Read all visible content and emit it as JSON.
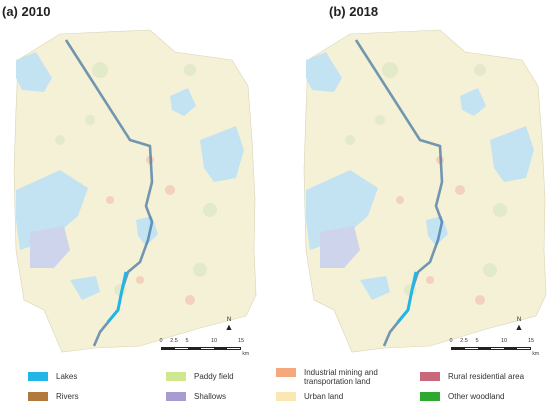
{
  "panels": [
    {
      "label": "(a)  2010",
      "year": "2010"
    },
    {
      "label": "(b)  2018",
      "year": "2018"
    }
  ],
  "north_arrow": {
    "letter": "N",
    "glyph": "▲"
  },
  "scale_bar": {
    "ticks": [
      "0",
      "2.5",
      "5",
      "10",
      "15"
    ],
    "unit": "km"
  },
  "legend": [
    {
      "label": "Lakes",
      "color": "#22b5e8"
    },
    {
      "label": "Rivers",
      "color": "#b07a3e"
    },
    {
      "label": "Paddy field",
      "color": "#cfe88f"
    },
    {
      "label": "Shallows",
      "color": "#a79bd2"
    },
    {
      "label": "Industrial mining and transportation land",
      "color": "#f4a87c"
    },
    {
      "label": "Urban land",
      "color": "#fbe7b3"
    },
    {
      "label": "Rural residential area",
      "color": "#c8687a"
    },
    {
      "label": "Other woodland",
      "color": "#2fa82f"
    }
  ],
  "colors": {
    "map_background": "#f5f1d6",
    "water": "#c4e3f2",
    "corridor": "#3a6fa0",
    "corridor_highlight": "#22b5e8"
  }
}
